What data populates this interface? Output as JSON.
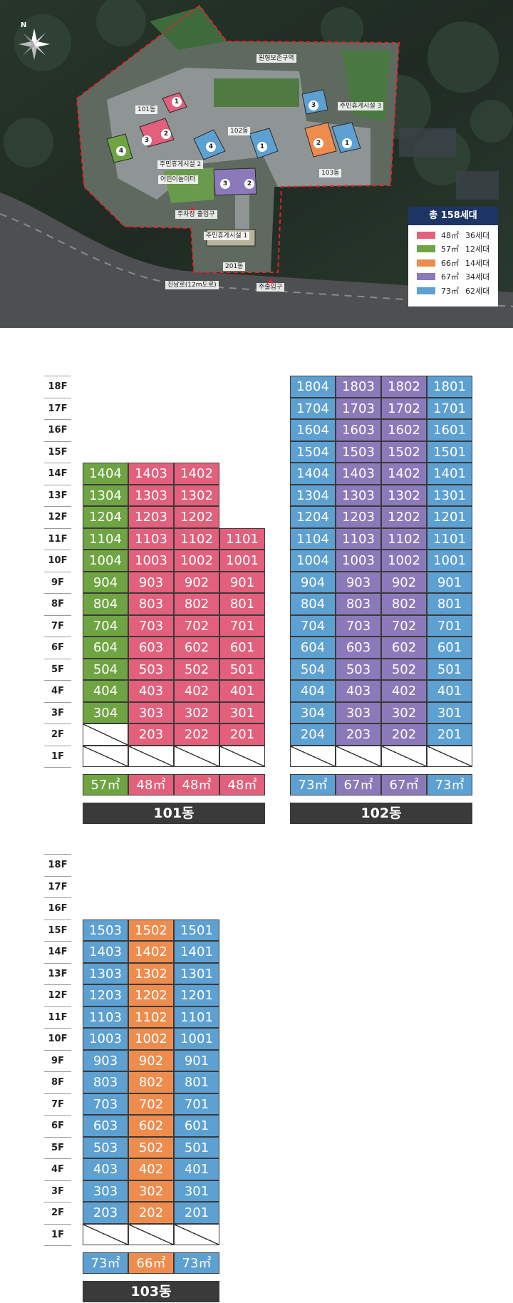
{
  "colors": {
    "48": "#e2607c",
    "57": "#6fa443",
    "66": "#ee8c4e",
    "67": "#8c79b9",
    "73": "#5da0d2",
    "empty": "#ffffff"
  },
  "legend": {
    "title": "총 158세대",
    "items": [
      {
        "area": "48㎡",
        "count": "36세대",
        "color": "#e2607c"
      },
      {
        "area": "57㎡",
        "count": "12세대",
        "color": "#6fa443"
      },
      {
        "area": "66㎡",
        "count": "14세대",
        "color": "#ee8c4e"
      },
      {
        "area": "67㎡",
        "count": "34세대",
        "color": "#8c79b9"
      },
      {
        "area": "73㎡",
        "count": "62세대",
        "color": "#5da0d2"
      }
    ]
  },
  "map_labels": {
    "b101": "101동",
    "b102": "102동",
    "b103": "103동",
    "b201": "201동",
    "green_zone": "원형보존구역",
    "rest1": "주민휴게시설 1",
    "rest2": "주민휴게시설 2",
    "rest3": "주민휴게시설 3",
    "playground": "어린이놀이터",
    "parking_entrance": "주차장 출입구",
    "road": "진남로(12m도로)",
    "main_entrance": "주출입구",
    "compass": "N"
  },
  "map_numbers": [
    "1",
    "2",
    "3",
    "4"
  ],
  "floors": [
    "18F",
    "17F",
    "16F",
    "15F",
    "14F",
    "13F",
    "12F",
    "11F",
    "10F",
    "9F",
    "8F",
    "7F",
    "6F",
    "5F",
    "4F",
    "3F",
    "2F",
    "1F"
  ],
  "buildings": [
    {
      "name": "101동",
      "cols": [
        {
          "type": "57",
          "label": "57㎡",
          "top": 14,
          "empty_from": 2
        },
        {
          "type": "48",
          "label": "48㎡",
          "top": 14,
          "empty_from": 1
        },
        {
          "type": "48",
          "label": "48㎡",
          "top": 14,
          "empty_from": 1
        },
        {
          "type": "48",
          "label": "48㎡",
          "top": 11,
          "empty_from": 1
        }
      ],
      "numbers": [
        "04",
        "03",
        "02",
        "01"
      ]
    },
    {
      "name": "102동",
      "cols": [
        {
          "type": "73",
          "label": "73㎡",
          "top": 18,
          "empty_from": 1
        },
        {
          "type": "67",
          "label": "67㎡",
          "top": 18,
          "empty_from": 1
        },
        {
          "type": "67",
          "label": "67㎡",
          "top": 18,
          "empty_from": 1
        },
        {
          "type": "73",
          "label": "73㎡",
          "top": 18,
          "empty_from": 1
        }
      ],
      "numbers": [
        "04",
        "03",
        "02",
        "01"
      ]
    },
    {
      "name": "103동",
      "cols": [
        {
          "type": "73",
          "label": "73㎡",
          "top": 15,
          "empty_from": 1
        },
        {
          "type": "66",
          "label": "66㎡",
          "top": 15,
          "empty_from": 1
        },
        {
          "type": "73",
          "label": "73㎡",
          "top": 15,
          "empty_from": 1
        }
      ],
      "numbers": [
        "03",
        "02",
        "01"
      ]
    }
  ]
}
